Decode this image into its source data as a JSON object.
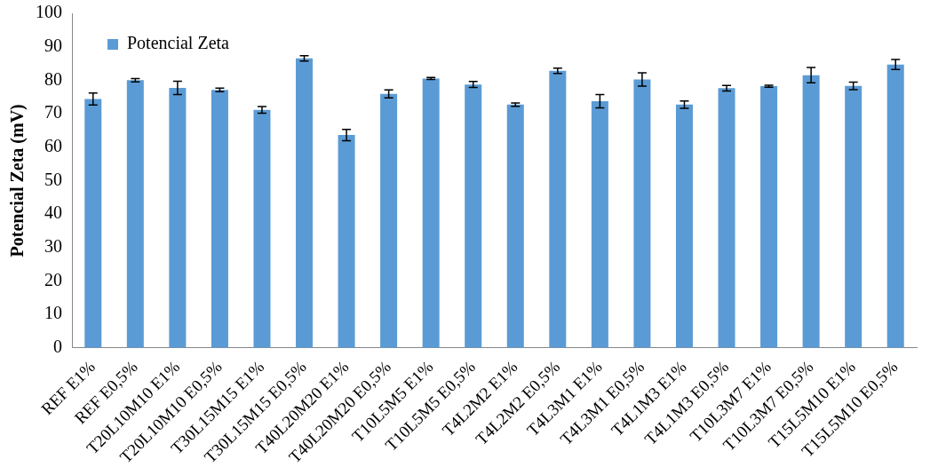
{
  "chart_data": {
    "type": "bar",
    "ylabel": "Potencial Zeta (mV)",
    "categories": [
      "REF E1%",
      "REF E0,5%",
      "T20L10M10 E1%",
      "T20L10M10 E0,5%",
      "T30L15M15 E1%",
      "T30L15M15 E0,5%",
      "T40L20M20 E1%",
      "T40L20M20 E0,5%",
      "T10L5M5 E1%",
      "T10L5M5 E0,5%",
      "T4L2M2 E1%",
      "T4L2M2 E0,5%",
      "T4L3M1 E1%",
      "T4L3M1 E0,5%",
      "T4L1M3 E1%",
      "T4L1M3 E0,5%",
      "T10L3M7 E1%",
      "T10L3M7 E0,5%",
      "T15L5M10 E1%",
      "T15L5M10 E0,5%"
    ],
    "series": [
      {
        "name": "Potencial Zeta",
        "color": "#5b9bd5",
        "values": [
          74.4,
          80.0,
          77.7,
          77.1,
          71.1,
          86.5,
          63.6,
          75.9,
          80.5,
          78.7,
          72.7,
          82.8,
          73.7,
          80.2,
          72.7,
          77.6,
          78.2,
          81.5,
          78.3,
          84.7
        ],
        "errors": [
          1.8,
          0.5,
          2,
          0.5,
          1,
          0.8,
          1.7,
          1.2,
          0.3,
          0.9,
          0.5,
          0.8,
          2,
          2,
          1.1,
          0.8,
          0.3,
          2.3,
          1.1,
          1.5
        ]
      }
    ],
    "ylim": [
      0,
      100
    ],
    "yticks": [
      0,
      10,
      20,
      30,
      40,
      50,
      60,
      70,
      80,
      90,
      100
    ],
    "grid": false,
    "legend": "top left"
  }
}
